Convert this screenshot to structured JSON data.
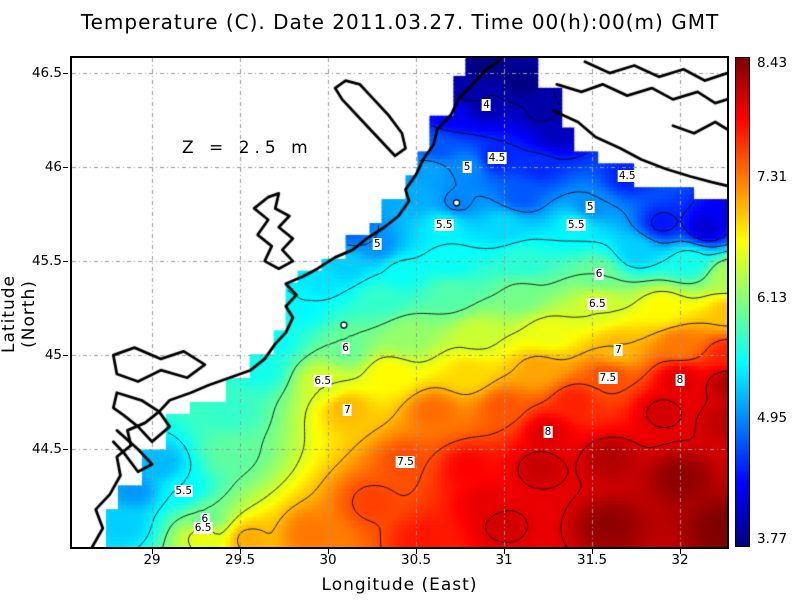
{
  "title": "Temperature (C). Date 2011.03.27. Time 00(h):00(m) GMT",
  "annotation": "Z = 2.5 m",
  "axes": {
    "xlabel": "Longitude (East)",
    "ylabel": "Latitude (North)",
    "x_ticks": [
      {
        "value": 29,
        "label": "29"
      },
      {
        "value": 29.5,
        "label": "29.5"
      },
      {
        "value": 30,
        "label": "30"
      },
      {
        "value": 30.5,
        "label": "30.5"
      },
      {
        "value": 31,
        "label": "31"
      },
      {
        "value": 31.5,
        "label": "31.5"
      },
      {
        "value": 32,
        "label": "32"
      }
    ],
    "y_ticks": [
      {
        "value": 46.5,
        "label": "46.5"
      },
      {
        "value": 46,
        "label": "46"
      },
      {
        "value": 45.5,
        "label": "45.5"
      },
      {
        "value": 45,
        "label": "45"
      },
      {
        "value": 44.5,
        "label": "44.5"
      }
    ],
    "grid_color": "#999999"
  },
  "colorbar": {
    "min": 3.77,
    "max": 8.43,
    "colormap": "jet",
    "ticks": [
      {
        "value": 8.43,
        "label": "8.43"
      },
      {
        "value": 7.31,
        "label": "7.31"
      },
      {
        "value": 6.13,
        "label": "6.13"
      },
      {
        "value": 4.95,
        "label": "4.95"
      },
      {
        "value": 3.77,
        "label": "3.77"
      }
    ]
  },
  "chart_data": {
    "type": "heatmap",
    "variable": "Temperature",
    "units": "C",
    "date": "2011.03.27",
    "time": "00(h):00(m) GMT",
    "depth_label": "Z = 2.5 m",
    "lon_range": [
      28.545,
      32.267
    ],
    "lat_range": [
      43.98,
      46.58
    ],
    "value_range": [
      3.77,
      8.43
    ],
    "contour_levels": [
      4,
      4.5,
      5,
      5.5,
      6,
      6.5,
      7,
      7.5,
      8
    ],
    "temperature_samples": [
      [
        30.88,
        46.55,
        3.78
      ],
      [
        31.1,
        46.45,
        3.8
      ],
      [
        30.8,
        46.4,
        3.95
      ],
      [
        31.22,
        46.3,
        3.95
      ],
      [
        31.3,
        46.18,
        4.05
      ],
      [
        30.9,
        46.33,
        4.0
      ],
      [
        30.7,
        46.28,
        4.3
      ],
      [
        30.96,
        46.05,
        4.5
      ],
      [
        30.62,
        46.1,
        4.75
      ],
      [
        31.2,
        46.0,
        4.55
      ],
      [
        30.79,
        46.0,
        5.0
      ],
      [
        30.58,
        45.98,
        5.1
      ],
      [
        31.7,
        45.95,
        4.5
      ],
      [
        32.15,
        45.68,
        4.15
      ],
      [
        32.27,
        45.8,
        4.3
      ],
      [
        31.9,
        45.7,
        4.45
      ],
      [
        31.49,
        45.79,
        5.0
      ],
      [
        31.1,
        45.85,
        4.75
      ],
      [
        30.73,
        45.81,
        4.95
      ],
      [
        30.5,
        45.85,
        5.15
      ],
      [
        30.28,
        45.59,
        5.0
      ],
      [
        30.15,
        45.66,
        4.8
      ],
      [
        30.66,
        45.69,
        5.5
      ],
      [
        31.0,
        45.68,
        5.35
      ],
      [
        31.41,
        45.69,
        5.5
      ],
      [
        31.75,
        45.55,
        5.3
      ],
      [
        32.05,
        45.5,
        5.6
      ],
      [
        32.28,
        45.42,
        6.3
      ],
      [
        31.54,
        45.43,
        6.0
      ],
      [
        31.1,
        45.5,
        5.7
      ],
      [
        30.7,
        45.5,
        5.55
      ],
      [
        30.42,
        45.44,
        5.55
      ],
      [
        30.1,
        45.48,
        5.3
      ],
      [
        29.95,
        45.4,
        5.4
      ],
      [
        29.85,
        45.25,
        5.5
      ],
      [
        30.3,
        45.3,
        5.75
      ],
      [
        30.7,
        45.32,
        5.9
      ],
      [
        31.1,
        45.32,
        6.05
      ],
      [
        31.53,
        45.27,
        6.5
      ],
      [
        31.9,
        45.25,
        6.7
      ],
      [
        32.28,
        45.22,
        6.95
      ],
      [
        29.7,
        45.08,
        5.55
      ],
      [
        30.1,
        45.04,
        6.0
      ],
      [
        30.45,
        45.1,
        6.2
      ],
      [
        30.85,
        45.1,
        6.45
      ],
      [
        31.25,
        45.12,
        6.6
      ],
      [
        31.65,
        45.03,
        7.0
      ],
      [
        32.0,
        45.05,
        7.3
      ],
      [
        32.28,
        45.0,
        7.7
      ],
      [
        29.62,
        44.92,
        5.6
      ],
      [
        29.97,
        44.86,
        6.5
      ],
      [
        30.35,
        44.9,
        6.7
      ],
      [
        30.8,
        44.9,
        6.85
      ],
      [
        31.2,
        44.92,
        7.1
      ],
      [
        31.59,
        44.88,
        7.5
      ],
      [
        32.0,
        44.87,
        8.0
      ],
      [
        32.28,
        44.85,
        8.2
      ],
      [
        29.45,
        44.7,
        5.75
      ],
      [
        30.11,
        44.71,
        7.0
      ],
      [
        30.6,
        44.7,
        7.35
      ],
      [
        31.0,
        44.72,
        7.45
      ],
      [
        31.4,
        44.75,
        7.7
      ],
      [
        31.9,
        44.7,
        8.05
      ],
      [
        32.27,
        44.65,
        8.15
      ],
      [
        29.18,
        44.28,
        5.5
      ],
      [
        29.05,
        44.42,
        5.2
      ],
      [
        28.9,
        44.28,
        5.05
      ],
      [
        28.84,
        44.1,
        5.3
      ],
      [
        29.45,
        44.48,
        5.95
      ],
      [
        29.3,
        44.13,
        6.0
      ],
      [
        29.29,
        44.04,
        6.6
      ],
      [
        29.55,
        44.02,
        7.05
      ],
      [
        29.9,
        44.05,
        7.3
      ],
      [
        30.25,
        44.22,
        7.55
      ],
      [
        30.44,
        44.43,
        7.5
      ],
      [
        30.8,
        44.4,
        7.85
      ],
      [
        31.25,
        44.59,
        8.0
      ],
      [
        31.2,
        44.4,
        8.1
      ],
      [
        31.6,
        44.45,
        8.2
      ],
      [
        32.0,
        44.35,
        8.35
      ],
      [
        32.25,
        44.08,
        8.43
      ],
      [
        31.6,
        44.1,
        8.35
      ],
      [
        31.0,
        44.1,
        8.05
      ],
      [
        30.55,
        44.02,
        7.75
      ],
      [
        30.9,
        44.22,
        7.95
      ]
    ],
    "contour_labels": [
      {
        "text": "4",
        "lon": 30.9,
        "lat": 46.33
      },
      {
        "text": "4.5",
        "lon": 30.96,
        "lat": 46.05
      },
      {
        "text": "5",
        "lon": 30.79,
        "lat": 46.0
      },
      {
        "text": "4.5",
        "lon": 31.7,
        "lat": 45.95
      },
      {
        "text": "5",
        "lon": 31.49,
        "lat": 45.79
      },
      {
        "text": "5.5",
        "lon": 30.66,
        "lat": 45.69
      },
      {
        "text": "5.5",
        "lon": 31.41,
        "lat": 45.69
      },
      {
        "text": "5",
        "lon": 30.28,
        "lat": 45.59
      },
      {
        "text": "6",
        "lon": 31.54,
        "lat": 45.43
      },
      {
        "text": "6.5",
        "lon": 31.53,
        "lat": 45.27
      },
      {
        "text": "6",
        "lon": 30.1,
        "lat": 45.04
      },
      {
        "text": "7",
        "lon": 31.65,
        "lat": 45.03
      },
      {
        "text": "6.5",
        "lon": 29.97,
        "lat": 44.86
      },
      {
        "text": "7.5",
        "lon": 31.59,
        "lat": 44.88
      },
      {
        "text": "8",
        "lon": 32.0,
        "lat": 44.87
      },
      {
        "text": "7",
        "lon": 30.11,
        "lat": 44.71
      },
      {
        "text": "8",
        "lon": 31.25,
        "lat": 44.59
      },
      {
        "text": "7.5",
        "lon": 30.44,
        "lat": 44.43
      },
      {
        "text": "5.5",
        "lon": 29.18,
        "lat": 44.28
      },
      {
        "text": "6",
        "lon": 29.3,
        "lat": 44.13
      },
      {
        "text": "6.5",
        "lon": 29.29,
        "lat": 44.08
      }
    ],
    "markers": [
      {
        "lon": 30.73,
        "lat": 45.81
      },
      {
        "lon": 30.09,
        "lat": 45.16
      }
    ],
    "sea_mask": {
      "west": [
        [
          46.45,
          46.58,
          30.8
        ],
        [
          46.28,
          46.45,
          30.7
        ],
        [
          46.12,
          46.28,
          30.6
        ],
        [
          45.98,
          46.12,
          30.5
        ],
        [
          45.84,
          45.98,
          30.42
        ],
        [
          45.72,
          45.84,
          30.34
        ],
        [
          45.62,
          45.72,
          30.24
        ],
        [
          45.54,
          45.62,
          30.1
        ],
        [
          45.47,
          45.54,
          29.96
        ],
        [
          45.4,
          45.47,
          29.86
        ],
        [
          45.16,
          45.4,
          29.79
        ],
        [
          45.0,
          45.16,
          29.7
        ],
        [
          44.88,
          45.0,
          29.55
        ],
        [
          44.76,
          44.88,
          29.42
        ],
        [
          44.66,
          44.76,
          29.2
        ],
        [
          44.52,
          44.66,
          29.06
        ],
        [
          44.3,
          44.52,
          28.96
        ],
        [
          44.14,
          44.3,
          28.8
        ],
        [
          43.98,
          44.14,
          28.72
        ]
      ],
      "north": [
        [
          31.2,
          31.3,
          46.4
        ],
        [
          31.3,
          31.4,
          46.25
        ],
        [
          31.4,
          31.55,
          46.1
        ],
        [
          31.55,
          31.72,
          46.0
        ],
        [
          31.72,
          31.85,
          45.93
        ],
        [
          31.85,
          32.05,
          45.87
        ],
        [
          32.05,
          32.28,
          45.82
        ]
      ]
    },
    "coastlines": [
      {
        "name": "west-coast",
        "closed": false,
        "points": [
          [
            28.66,
            43.98
          ],
          [
            28.72,
            44.08
          ],
          [
            28.68,
            44.18
          ],
          [
            28.76,
            44.26
          ],
          [
            28.82,
            44.36
          ],
          [
            28.8,
            44.46
          ],
          [
            28.88,
            44.52
          ],
          [
            28.86,
            44.6
          ],
          [
            28.96,
            44.64
          ],
          [
            29.04,
            44.7
          ],
          [
            29.1,
            44.76
          ],
          [
            29.22,
            44.8
          ],
          [
            29.32,
            44.84
          ],
          [
            29.44,
            44.88
          ],
          [
            29.56,
            44.92
          ],
          [
            29.64,
            44.98
          ],
          [
            29.7,
            45.06
          ],
          [
            29.76,
            45.12
          ],
          [
            29.8,
            45.2
          ],
          [
            29.76,
            45.26
          ],
          [
            29.82,
            45.32
          ],
          [
            29.76,
            45.38
          ],
          [
            29.86,
            45.42
          ],
          [
            29.94,
            45.46
          ],
          [
            30.04,
            45.52
          ],
          [
            30.14,
            45.56
          ],
          [
            30.22,
            45.62
          ],
          [
            30.32,
            45.68
          ],
          [
            30.4,
            45.74
          ],
          [
            30.46,
            45.82
          ],
          [
            30.44,
            45.88
          ],
          [
            30.5,
            45.96
          ],
          [
            30.54,
            46.04
          ],
          [
            30.6,
            46.12
          ],
          [
            30.62,
            46.2
          ],
          [
            30.7,
            46.28
          ],
          [
            30.74,
            46.36
          ],
          [
            30.82,
            46.44
          ],
          [
            30.9,
            46.52
          ],
          [
            30.98,
            46.57
          ]
        ]
      },
      {
        "name": "dniester-liman",
        "closed": true,
        "points": [
          [
            29.66,
            45.84
          ],
          [
            29.72,
            45.86
          ],
          [
            29.7,
            45.78
          ],
          [
            29.78,
            45.74
          ],
          [
            29.72,
            45.68
          ],
          [
            29.8,
            45.62
          ],
          [
            29.74,
            45.56
          ],
          [
            29.8,
            45.5
          ],
          [
            29.72,
            45.46
          ],
          [
            29.64,
            45.5
          ],
          [
            29.68,
            45.58
          ],
          [
            29.6,
            45.64
          ],
          [
            29.66,
            45.72
          ],
          [
            29.58,
            45.78
          ]
        ]
      },
      {
        "name": "tiligul-liman",
        "closed": true,
        "points": [
          [
            30.04,
            46.42
          ],
          [
            30.1,
            46.46
          ],
          [
            30.18,
            46.44
          ],
          [
            30.26,
            46.36
          ],
          [
            30.34,
            46.28
          ],
          [
            30.42,
            46.18
          ],
          [
            30.44,
            46.1
          ],
          [
            30.38,
            46.06
          ],
          [
            30.32,
            46.12
          ],
          [
            30.24,
            46.2
          ],
          [
            30.16,
            46.28
          ],
          [
            30.08,
            46.36
          ]
        ]
      },
      {
        "name": "dnieper-spit",
        "closed": false,
        "points": [
          [
            31.28,
            46.3
          ],
          [
            31.42,
            46.24
          ],
          [
            31.52,
            46.16
          ],
          [
            31.66,
            46.1
          ],
          [
            31.78,
            46.04
          ],
          [
            31.92,
            45.99
          ],
          [
            32.06,
            45.95
          ],
          [
            32.18,
            45.92
          ],
          [
            32.27,
            45.9
          ]
        ]
      },
      {
        "name": "dnieper-estuary-bank",
        "closed": false,
        "points": [
          [
            31.3,
            46.44
          ],
          [
            31.44,
            46.4
          ],
          [
            31.56,
            46.44
          ],
          [
            31.7,
            46.38
          ],
          [
            31.84,
            46.42
          ],
          [
            31.96,
            46.36
          ],
          [
            32.1,
            46.4
          ],
          [
            32.2,
            46.34
          ],
          [
            32.27,
            46.36
          ]
        ]
      },
      {
        "name": "upper-river-squiggle",
        "closed": false,
        "points": [
          [
            31.46,
            46.56
          ],
          [
            31.6,
            46.5
          ],
          [
            31.74,
            46.54
          ],
          [
            31.88,
            46.48
          ],
          [
            32.02,
            46.52
          ],
          [
            32.14,
            46.46
          ],
          [
            32.27,
            46.5
          ]
        ]
      },
      {
        "name": "estuary-inner-bank",
        "closed": false,
        "points": [
          [
            31.96,
            46.22
          ],
          [
            32.08,
            46.18
          ],
          [
            32.2,
            46.24
          ],
          [
            32.27,
            46.2
          ]
        ]
      },
      {
        "name": "delta-lagoon-upper",
        "closed": true,
        "points": [
          [
            28.78,
            45.0
          ],
          [
            28.9,
            45.04
          ],
          [
            29.05,
            44.98
          ],
          [
            29.18,
            45.02
          ],
          [
            29.3,
            44.95
          ],
          [
            29.2,
            44.88
          ],
          [
            29.05,
            44.92
          ],
          [
            28.92,
            44.86
          ],
          [
            28.8,
            44.9
          ]
        ]
      },
      {
        "name": "delta-lagoon-lower",
        "closed": true,
        "points": [
          [
            28.8,
            44.8
          ],
          [
            28.94,
            44.76
          ],
          [
            29.04,
            44.7
          ],
          [
            29.1,
            44.62
          ],
          [
            29.0,
            44.54
          ],
          [
            28.92,
            44.62
          ],
          [
            28.84,
            44.68
          ],
          [
            28.78,
            44.72
          ]
        ]
      },
      {
        "name": "delta-lagoon-south",
        "closed": false,
        "points": [
          [
            28.8,
            44.6
          ],
          [
            28.92,
            44.5
          ],
          [
            29.0,
            44.42
          ],
          [
            28.92,
            44.38
          ],
          [
            28.84,
            44.48
          ],
          [
            28.78,
            44.54
          ]
        ]
      }
    ]
  }
}
